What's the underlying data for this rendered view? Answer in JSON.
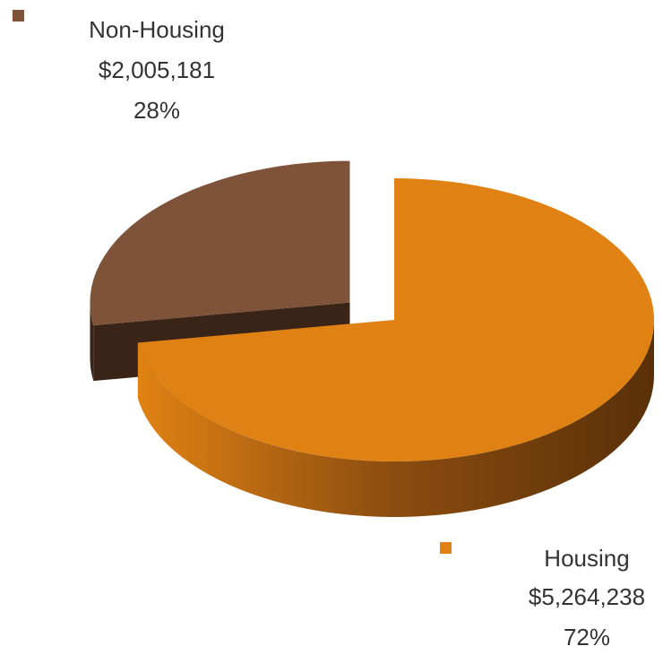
{
  "chart_data": {
    "type": "pie3d",
    "categories": [
      "Non-Housing",
      "Housing"
    ],
    "values": [
      2005181,
      5264238
    ],
    "value_labels": [
      "$2,005,181",
      "$5,264,238"
    ],
    "percents": [
      28,
      72
    ],
    "percent_labels": [
      "28%",
      "72%"
    ],
    "colors": [
      "#7f5339",
      "#e08213"
    ]
  }
}
